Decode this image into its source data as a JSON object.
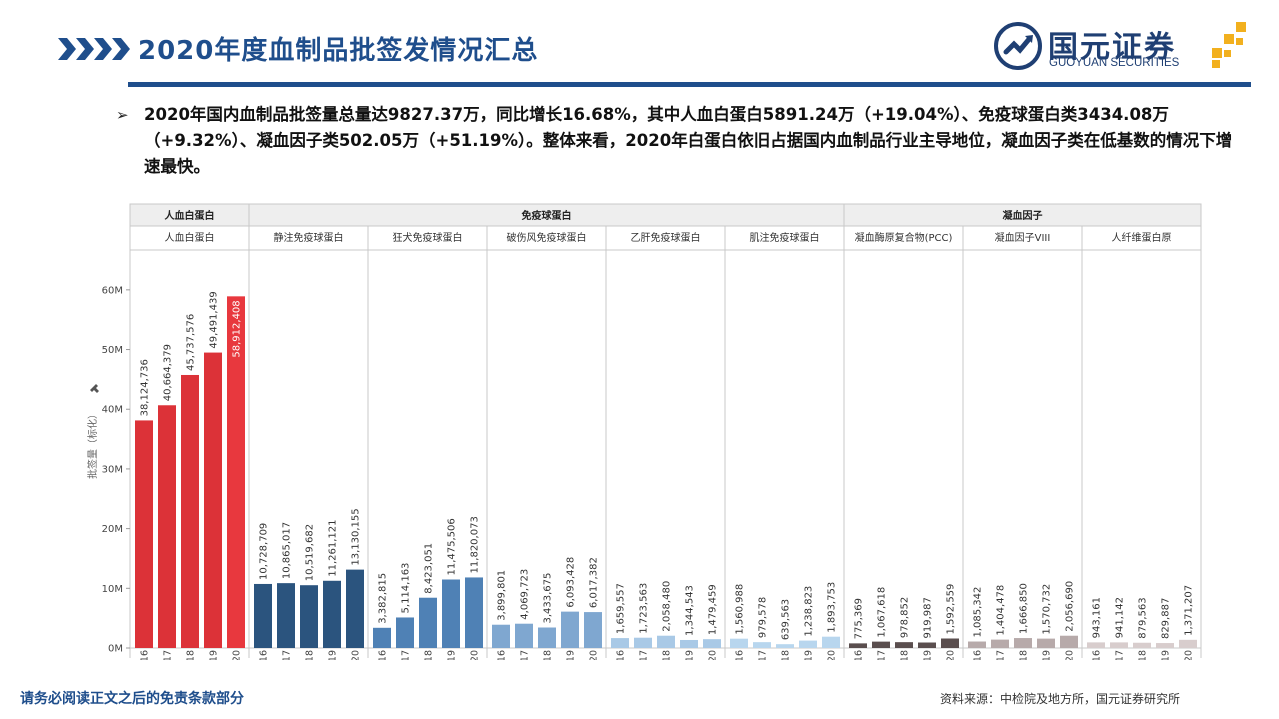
{
  "header": {
    "title": "2020年度血制品批签发情况汇总",
    "logo_cn": "国元证券",
    "logo_en": "GUOYUAN SECURITIES",
    "brand_color": "#1f4e8c",
    "accent_color": "#f2b01e"
  },
  "summary": {
    "bullet": "➢",
    "text": "2020年国内血制品批签量总量达9827.37万，同比增长16.68%，其中人血白蛋白5891.24万（+19.04%）、免疫球蛋白类3434.08万（+9.32%）、凝血因子类502.05万（+51.19%）。整体来看，2020年白蛋白依旧占据国内血制品行业主导地位，凝血因子类在低基数的情况下增速最快。"
  },
  "footer": {
    "disclaimer": "请务必阅读正文之后的免责条款部分",
    "source": "资料来源：中检院及地方所，国元证券研究所"
  },
  "chart_data": {
    "type": "bar",
    "ylabel": "批签量（标化）",
    "ylim": [
      0,
      65000000
    ],
    "yticks": [
      "0M",
      "10M",
      "20M",
      "30M",
      "40M",
      "50M",
      "60M"
    ],
    "ytick_values": [
      0,
      10000000,
      20000000,
      30000000,
      40000000,
      50000000,
      60000000
    ],
    "categories": [
      "2016",
      "2017",
      "2018",
      "2019",
      "2020"
    ],
    "groups": [
      {
        "name": "人血白蛋白",
        "products": [
          "人血白蛋白"
        ]
      },
      {
        "name": "免疫球蛋白",
        "products": [
          "静注免疫球蛋白",
          "狂犬免疫球蛋白",
          "破伤风免疫球蛋白",
          "乙肝免疫球蛋白",
          "肌注免疫球蛋白"
        ]
      },
      {
        "name": "凝血因子",
        "products": [
          "凝血酶原复合物(PCC)",
          "凝血因子VIII",
          "人纤维蛋白原"
        ]
      }
    ],
    "series": [
      {
        "name": "人血白蛋白",
        "color": "#dc3238",
        "highlight_color": "#e8383e",
        "values": [
          38124736,
          40664379,
          45737576,
          49491439,
          58912408
        ],
        "labels": [
          "38,124,736",
          "40,664,379",
          "45,737,576",
          "49,491,439",
          "58,912,408"
        ]
      },
      {
        "name": "静注免疫球蛋白",
        "color": "#2b547e",
        "values": [
          10728709,
          10865017,
          10519682,
          11261121,
          13130155
        ],
        "labels": [
          "10,728,709",
          "10,865,017",
          "10,519,682",
          "11,261,121",
          "13,130,155"
        ]
      },
      {
        "name": "狂犬免疫球蛋白",
        "color": "#4f81b5",
        "values": [
          3382815,
          5114163,
          8423051,
          11475506,
          11820073
        ],
        "labels": [
          "3,382,815",
          "5,114,163",
          "8,423,051",
          "11,475,506",
          "11,820,073"
        ]
      },
      {
        "name": "破伤风免疫球蛋白",
        "color": "#7fa7d0",
        "values": [
          3899801,
          4069723,
          3433675,
          6093428,
          6017382
        ],
        "labels": [
          "3,899,801",
          "4,069,723",
          "3,433,675",
          "6,093,428",
          "6,017,382"
        ]
      },
      {
        "name": "乙肝免疫球蛋白",
        "color": "#a9c9e6",
        "values": [
          1659557,
          1723563,
          2058480,
          1344543,
          1479459
        ],
        "labels": [
          "1,659,557",
          "1,723,563",
          "2,058,480",
          "1,344,543",
          "1,479,459"
        ]
      },
      {
        "name": "肌注免疫球蛋白",
        "color": "#b8d6ee",
        "values": [
          1560988,
          979578,
          639563,
          1238823,
          1893753
        ],
        "labels": [
          "1,560,988",
          "979,578",
          "639,563",
          "1,238,823",
          "1,893,753"
        ]
      },
      {
        "name": "凝血酶原复合物(PCC)",
        "color": "#5a4e4e",
        "values": [
          775369,
          1067618,
          978852,
          919987,
          1592559
        ],
        "labels": [
          "775,369",
          "1,067,618",
          "978,852",
          "919,987",
          "1,592,559"
        ]
      },
      {
        "name": "凝血因子VIII",
        "color": "#b7aaaa",
        "values": [
          1085342,
          1404478,
          1666850,
          1570732,
          2056690
        ],
        "labels": [
          "1,085,342",
          "1,404,478",
          "1,666,850",
          "1,570,732",
          "2,056,690"
        ]
      },
      {
        "name": "人纤维蛋白原",
        "color": "#d8cdcd",
        "values": [
          943161,
          941142,
          879563,
          829887,
          1371207
        ],
        "labels": [
          "943,161",
          "941,142",
          "879,563",
          "829,887",
          "1,371,207"
        ]
      }
    ],
    "grid": false,
    "legend": "none"
  }
}
